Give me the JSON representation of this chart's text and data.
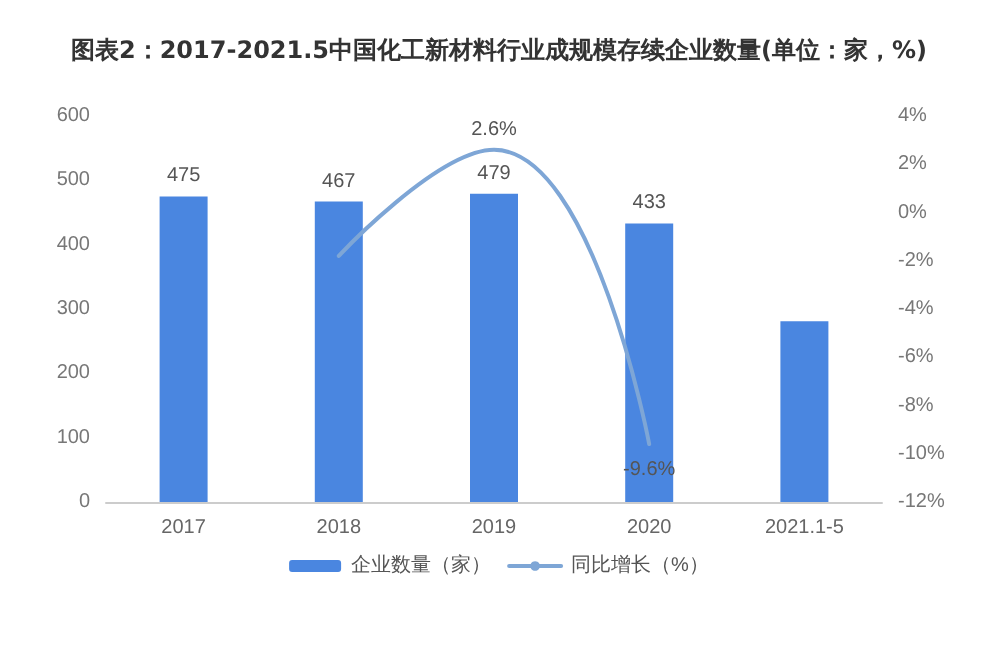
{
  "chart_data": {
    "type": "bar",
    "title": "图表2：2017-2021.5中国化工新材料行业成规模存续企业数量(单位：家，%)",
    "categories": [
      "2017",
      "2018",
      "2019",
      "2020",
      "2021.1-5"
    ],
    "series": [
      {
        "name": "企业数量（家）",
        "color": "#4a86e0",
        "values": [
          475,
          467,
          479,
          433,
          281
        ],
        "value_labels": [
          "475",
          "467",
          "479",
          "433",
          null
        ]
      },
      {
        "name": "同比增长（%）",
        "type": "line",
        "axis": "y2",
        "color": "#7ea6d6",
        "values": [
          null,
          -1.8,
          2.6,
          -9.6,
          null
        ],
        "value_labels": [
          null,
          null,
          "2.6%",
          "-9.6%",
          null
        ]
      }
    ],
    "ylim": [
      0,
      600
    ],
    "yticks": [
      0,
      100,
      200,
      300,
      400,
      500,
      600
    ],
    "y2lim": [
      -12,
      4
    ],
    "y2ticks": [
      {
        "value": -12,
        "label": "-12%"
      },
      {
        "value": -10,
        "label": "-10%"
      },
      {
        "value": -8,
        "label": "-8%"
      },
      {
        "value": -6,
        "label": "-6%"
      },
      {
        "value": -4,
        "label": "-4%"
      },
      {
        "value": -2,
        "label": "-2%"
      },
      {
        "value": 0,
        "label": "0%"
      },
      {
        "value": 2,
        "label": "2%"
      },
      {
        "value": 4,
        "label": "4%"
      }
    ],
    "grid": false,
    "legend": "bottom",
    "marker": "none",
    "line_style": "solid"
  }
}
